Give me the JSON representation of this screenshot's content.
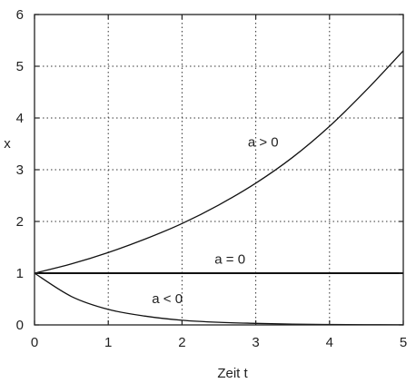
{
  "chart_data": {
    "type": "line",
    "title": "",
    "xlabel": "Zeit t",
    "ylabel": "x",
    "xlim": [
      0,
      5
    ],
    "ylim": [
      0,
      6
    ],
    "xticks": [
      "0",
      "1",
      "2",
      "3",
      "4",
      "5"
    ],
    "yticks": [
      "0",
      "1",
      "2",
      "3",
      "4",
      "5",
      "6"
    ],
    "grid": true,
    "series": [
      {
        "name": "a > 0",
        "x": [
          0,
          0.5,
          1,
          1.5,
          2,
          2.5,
          3,
          3.5,
          4,
          4.5,
          5
        ],
        "y": [
          1.0,
          1.18,
          1.4,
          1.66,
          1.96,
          2.32,
          2.74,
          3.24,
          3.84,
          4.54,
          5.3
        ]
      },
      {
        "name": "a = 0",
        "x": [
          0,
          5
        ],
        "y": [
          1.0,
          1.0
        ]
      },
      {
        "name": "a < 0",
        "x": [
          0,
          0.5,
          1,
          1.5,
          2,
          2.5,
          3,
          3.5,
          4,
          4.5,
          5
        ],
        "y": [
          1.0,
          0.55,
          0.3,
          0.17,
          0.09,
          0.05,
          0.03,
          0.015,
          0.008,
          0.004,
          0.002
        ]
      }
    ]
  }
}
